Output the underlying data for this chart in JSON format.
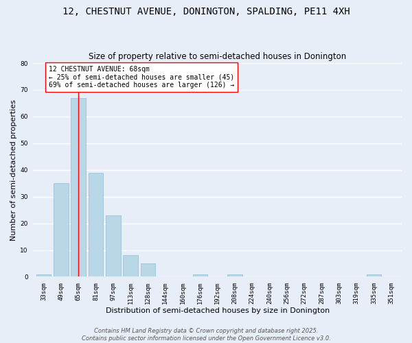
{
  "title": "12, CHESTNUT AVENUE, DONINGTON, SPALDING, PE11 4XH",
  "subtitle": "Size of property relative to semi-detached houses in Donington",
  "xlabel": "Distribution of semi-detached houses by size in Donington",
  "ylabel": "Number of semi-detached properties",
  "bin_labels": [
    "33sqm",
    "49sqm",
    "65sqm",
    "81sqm",
    "97sqm",
    "113sqm",
    "128sqm",
    "144sqm",
    "160sqm",
    "176sqm",
    "192sqm",
    "208sqm",
    "224sqm",
    "240sqm",
    "256sqm",
    "272sqm",
    "287sqm",
    "303sqm",
    "319sqm",
    "335sqm",
    "351sqm"
  ],
  "bar_values": [
    1,
    35,
    67,
    39,
    23,
    8,
    5,
    0,
    0,
    1,
    0,
    1,
    0,
    0,
    0,
    0,
    0,
    0,
    0,
    1,
    0
  ],
  "bar_color": "#b8d8e8",
  "bar_edge_color": "#92bdd0",
  "background_color": "#e8eef8",
  "grid_color": "#ffffff",
  "ylim": [
    0,
    80
  ],
  "yticks": [
    0,
    10,
    20,
    30,
    40,
    50,
    60,
    70,
    80
  ],
  "property_line_x_label": "65sqm",
  "annotation_title": "12 CHESTNUT AVENUE: 68sqm",
  "annotation_line1": "← 25% of semi-detached houses are smaller (45)",
  "annotation_line2": "69% of semi-detached houses are larger (126) →",
  "footer_line1": "Contains HM Land Registry data © Crown copyright and database right 2025.",
  "footer_line2": "Contains public sector information licensed under the Open Government Licence v3.0.",
  "title_fontsize": 10,
  "subtitle_fontsize": 8.5,
  "axis_label_fontsize": 8,
  "tick_fontsize": 6.5,
  "annotation_fontsize": 7,
  "footer_fontsize": 6
}
